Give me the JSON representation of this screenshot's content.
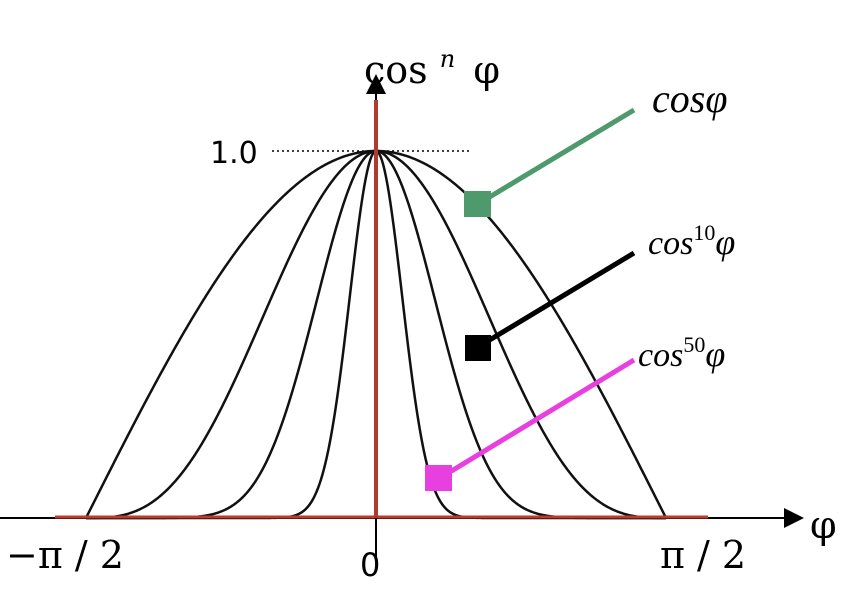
{
  "chart_data": {
    "type": "line",
    "function": "cos^n(phi)",
    "x_range": [
      -1.5708,
      1.5708
    ],
    "y_range": [
      0,
      1
    ],
    "axis": {
      "y_label_base": "cos",
      "y_label_exp": "n",
      "y_label_var": "φ",
      "x_label": "φ"
    },
    "ticks": {
      "x_left": "−π / 2",
      "x_center": "0",
      "x_right": "π / 2",
      "y_top": "1.0"
    },
    "visible_n_values": [
      1,
      3,
      10,
      50
    ],
    "callouts": [
      {
        "key": "cos1",
        "base": "cos",
        "exp": "",
        "var": "φ",
        "color": "#4e9a6c",
        "n": 1
      },
      {
        "key": "cos10",
        "base": "cos",
        "exp": "10",
        "var": "φ",
        "color": "#000000",
        "n": 10
      },
      {
        "key": "cos50",
        "base": "cos",
        "exp": "50",
        "var": "φ",
        "color": "#e83fe0",
        "n": 50
      }
    ],
    "colors": {
      "curve": "#111111",
      "axis_baseline": "#c0392b",
      "vertical_axis": "#b03a2e",
      "reference_line": "#000000"
    }
  }
}
